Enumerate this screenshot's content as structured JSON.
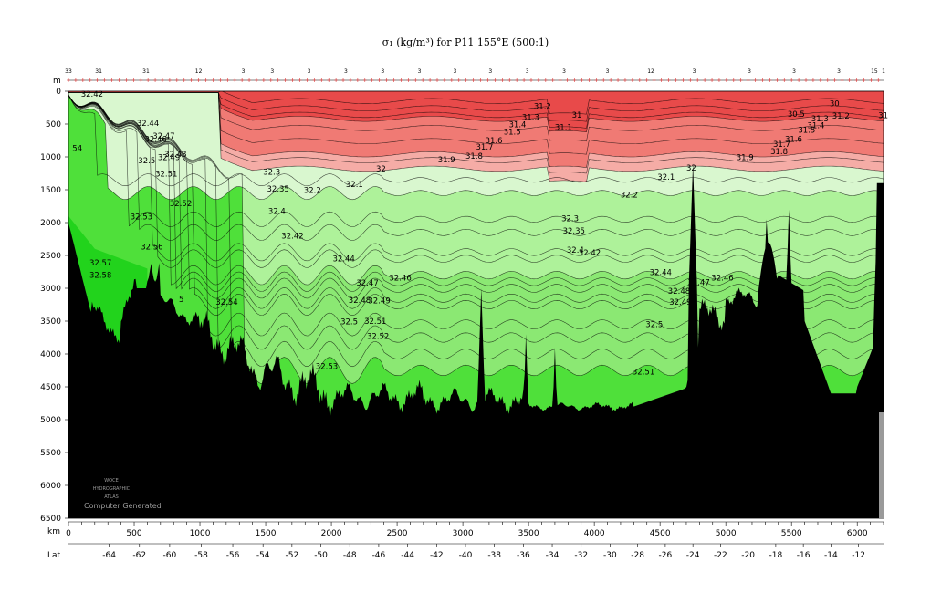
{
  "title": "σ₁ (kg/m³) for P11 155°E (500:1)",
  "axes": {
    "depth_unit": "m",
    "distance_unit": "km",
    "lat_label": "Lat"
  },
  "watermark": {
    "line1": "WOCE",
    "line2": "HYDROGRAPHIC",
    "line3": "ATLAS",
    "line4": "Computer Generated"
  },
  "colors": {
    "deep_red": "#e84a4a",
    "red": "#f07a74",
    "salmon": "#f5aca6",
    "pale_green": "#d9f7cf",
    "light_green": "#aef29a",
    "green": "#8be873",
    "bright_green": "#4fe03a",
    "vivid_green": "#22d31c",
    "bottom": "#000000",
    "contour": "#000000"
  },
  "chart_data": {
    "type": "section",
    "title": "σ₁ (kg/m³) for P11 155°E (500:1)",
    "xlabel": "km",
    "ylabel": "m",
    "xlim": [
      0,
      6200
    ],
    "ylim": [
      6500,
      0
    ],
    "x_ticks": [
      0,
      500,
      1000,
      1500,
      2000,
      2500,
      3000,
      3500,
      4000,
      4500,
      5000,
      5500,
      6000
    ],
    "y_ticks": [
      0,
      500,
      1000,
      1500,
      2000,
      2500,
      3000,
      3500,
      4000,
      4500,
      5000,
      5500,
      6000,
      6500
    ],
    "lat_ticks": [
      {
        "km": 310,
        "label": "-64"
      },
      {
        "km": 540,
        "label": "-62"
      },
      {
        "km": 770,
        "label": "-60"
      },
      {
        "km": 1010,
        "label": "-58"
      },
      {
        "km": 1250,
        "label": "-56"
      },
      {
        "km": 1480,
        "label": "-54"
      },
      {
        "km": 1700,
        "label": "-52"
      },
      {
        "km": 1920,
        "label": "-50"
      },
      {
        "km": 2140,
        "label": "-48"
      },
      {
        "km": 2360,
        "label": "-46"
      },
      {
        "km": 2580,
        "label": "-44"
      },
      {
        "km": 2800,
        "label": "-42"
      },
      {
        "km": 3020,
        "label": "-40"
      },
      {
        "km": 3240,
        "label": "-38"
      },
      {
        "km": 3460,
        "label": "-36"
      },
      {
        "km": 3680,
        "label": "-34"
      },
      {
        "km": 3900,
        "label": "-32"
      },
      {
        "km": 4120,
        "label": "-30"
      },
      {
        "km": 4330,
        "label": "-28"
      },
      {
        "km": 4540,
        "label": "-26"
      },
      {
        "km": 4750,
        "label": "-24"
      },
      {
        "km": 4960,
        "label": "-22"
      },
      {
        "km": 5170,
        "label": "-20"
      },
      {
        "km": 5380,
        "label": "-18"
      },
      {
        "km": 5590,
        "label": "-16"
      },
      {
        "km": 5800,
        "label": "-14"
      },
      {
        "km": 6010,
        "label": "-12"
      }
    ],
    "station_labels": [
      {
        "km": 0,
        "label": "33"
      },
      {
        "km": 230,
        "label": "31"
      },
      {
        "km": 590,
        "label": "31"
      },
      {
        "km": 990,
        "label": "12"
      },
      {
        "km": 1330,
        "label": "3"
      },
      {
        "km": 1550,
        "label": "3"
      },
      {
        "km": 1830,
        "label": "3"
      },
      {
        "km": 2110,
        "label": "3"
      },
      {
        "km": 2390,
        "label": "3"
      },
      {
        "km": 2670,
        "label": "3"
      },
      {
        "km": 2940,
        "label": "3"
      },
      {
        "km": 3210,
        "label": "3"
      },
      {
        "km": 3490,
        "label": "3"
      },
      {
        "km": 3770,
        "label": "3"
      },
      {
        "km": 4100,
        "label": "3"
      },
      {
        "km": 4430,
        "label": "12"
      },
      {
        "km": 4760,
        "label": "3"
      },
      {
        "km": 5180,
        "label": "3"
      },
      {
        "km": 5520,
        "label": "3"
      },
      {
        "km": 5860,
        "label": "3"
      },
      {
        "km": 6130,
        "label": "15"
      },
      {
        "km": 6200,
        "label": "1"
      }
    ],
    "contour_labels": [
      {
        "x": 95,
        "d": 80,
        "label": "32.42"
      },
      {
        "x": 520,
        "d": 530,
        "label": "32.44"
      },
      {
        "x": 640,
        "d": 720,
        "label": "32.47"
      },
      {
        "x": 580,
        "d": 770,
        "label": "32.46"
      },
      {
        "x": 730,
        "d": 1000,
        "label": "32.48"
      },
      {
        "x": 680,
        "d": 1050,
        "label": "32.49"
      },
      {
        "x": 530,
        "d": 1100,
        "label": "32.5"
      },
      {
        "x": 660,
        "d": 1300,
        "label": "32.51"
      },
      {
        "x": 770,
        "d": 1750,
        "label": "32.52"
      },
      {
        "x": 470,
        "d": 1950,
        "label": "32.53"
      },
      {
        "x": 30,
        "d": 910,
        "label": "54"
      },
      {
        "x": 550,
        "d": 2410,
        "label": "32.56"
      },
      {
        "x": 160,
        "d": 2650,
        "label": "32.57"
      },
      {
        "x": 160,
        "d": 2840,
        "label": "32.58"
      },
      {
        "x": 840,
        "d": 3210,
        "label": "5"
      },
      {
        "x": 1120,
        "d": 3250,
        "label": "32.54"
      },
      {
        "x": 1480,
        "d": 1270,
        "label": "32.3"
      },
      {
        "x": 1510,
        "d": 1530,
        "label": "32.35"
      },
      {
        "x": 1790,
        "d": 1550,
        "label": "32.2"
      },
      {
        "x": 2110,
        "d": 1460,
        "label": "32.1"
      },
      {
        "x": 2340,
        "d": 1220,
        "label": "32"
      },
      {
        "x": 2810,
        "d": 1080,
        "label": "31.9"
      },
      {
        "x": 3020,
        "d": 1030,
        "label": "31.8"
      },
      {
        "x": 3100,
        "d": 890,
        "label": "31.7"
      },
      {
        "x": 3170,
        "d": 790,
        "label": "31.6"
      },
      {
        "x": 3310,
        "d": 660,
        "label": "31.5"
      },
      {
        "x": 3350,
        "d": 550,
        "label": "31.4"
      },
      {
        "x": 3450,
        "d": 440,
        "label": "31.3"
      },
      {
        "x": 3540,
        "d": 270,
        "label": "31.2"
      },
      {
        "x": 3700,
        "d": 590,
        "label": "31.1"
      },
      {
        "x": 3830,
        "d": 400,
        "label": "31"
      },
      {
        "x": 1520,
        "d": 1870,
        "label": "32.4"
      },
      {
        "x": 1620,
        "d": 2240,
        "label": "32.42"
      },
      {
        "x": 2010,
        "d": 2590,
        "label": "32.44"
      },
      {
        "x": 2440,
        "d": 2880,
        "label": "32.46"
      },
      {
        "x": 2190,
        "d": 2960,
        "label": "32.47"
      },
      {
        "x": 2130,
        "d": 3220,
        "label": "32.48"
      },
      {
        "x": 2280,
        "d": 3230,
        "label": "32.49"
      },
      {
        "x": 2070,
        "d": 3550,
        "label": "32.5"
      },
      {
        "x": 2250,
        "d": 3540,
        "label": "32.51"
      },
      {
        "x": 2270,
        "d": 3770,
        "label": "32.52"
      },
      {
        "x": 1880,
        "d": 4230,
        "label": "32.53"
      },
      {
        "x": 3750,
        "d": 1980,
        "label": "32.3"
      },
      {
        "x": 3760,
        "d": 2170,
        "label": "32.35"
      },
      {
        "x": 3790,
        "d": 2460,
        "label": "32.4"
      },
      {
        "x": 3880,
        "d": 2500,
        "label": "32.42"
      },
      {
        "x": 4420,
        "d": 2800,
        "label": "32.44"
      },
      {
        "x": 4710,
        "d": 2950,
        "label": "32.47"
      },
      {
        "x": 4890,
        "d": 2880,
        "label": "32.46"
      },
      {
        "x": 4560,
        "d": 3080,
        "label": "32.48"
      },
      {
        "x": 4570,
        "d": 3250,
        "label": "32.49"
      },
      {
        "x": 4390,
        "d": 3590,
        "label": "32.5"
      },
      {
        "x": 4290,
        "d": 4310,
        "label": "32.51"
      },
      {
        "x": 4200,
        "d": 1620,
        "label": "32.2"
      },
      {
        "x": 4480,
        "d": 1350,
        "label": "32.1"
      },
      {
        "x": 4700,
        "d": 1210,
        "label": "32"
      },
      {
        "x": 5080,
        "d": 1050,
        "label": "31.9"
      },
      {
        "x": 5340,
        "d": 960,
        "label": "31.8"
      },
      {
        "x": 5360,
        "d": 850,
        "label": "31.7"
      },
      {
        "x": 5450,
        "d": 770,
        "label": "31.6"
      },
      {
        "x": 5550,
        "d": 630,
        "label": "31.5"
      },
      {
        "x": 5620,
        "d": 560,
        "label": "31.4"
      },
      {
        "x": 5650,
        "d": 460,
        "label": "31.3"
      },
      {
        "x": 5810,
        "d": 420,
        "label": "31.2"
      },
      {
        "x": 5470,
        "d": 390,
        "label": "30.5"
      },
      {
        "x": 5790,
        "d": 230,
        "label": "30"
      },
      {
        "x": 6160,
        "d": 410,
        "label": "31"
      }
    ]
  }
}
